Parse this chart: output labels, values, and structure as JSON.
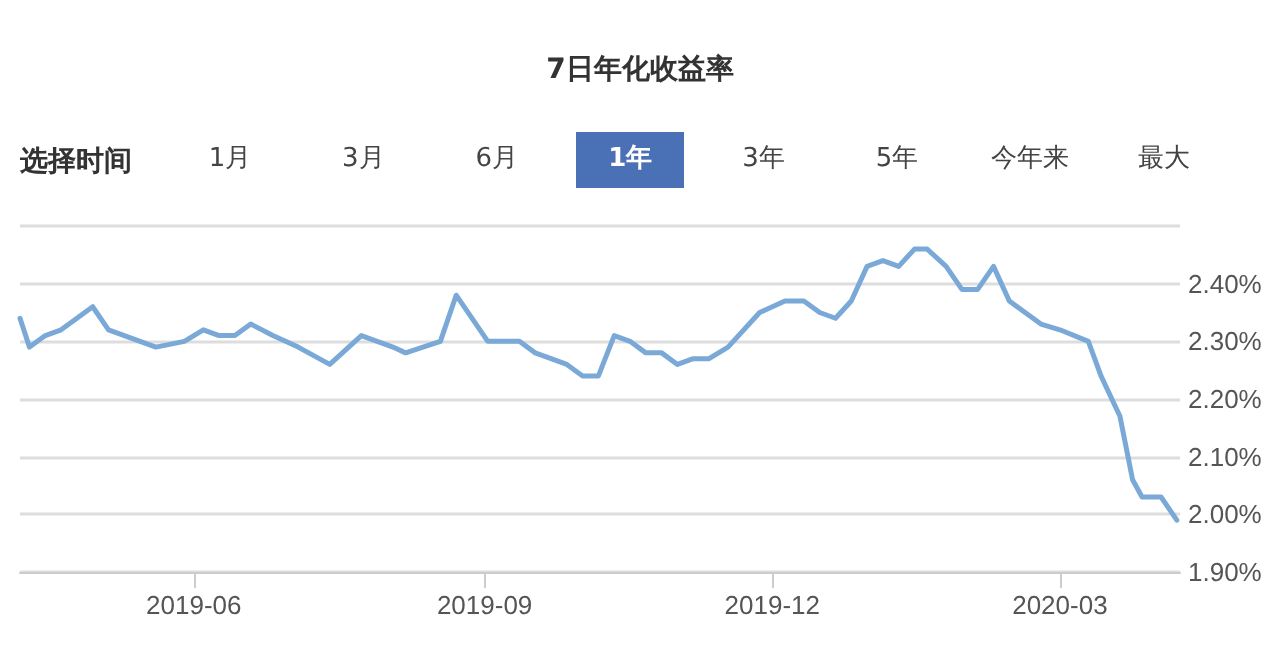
{
  "chart_data": {
    "type": "line",
    "title": "7日年化收益率",
    "annotations": [
      "选择时间",
      "1月",
      "3月",
      "6月",
      "1年",
      "3年",
      "5年",
      "今年来",
      "最大"
    ],
    "x": [
      "2019-04-07",
      "2019-04-10",
      "2019-04-15",
      "2019-04-20",
      "2019-04-30",
      "2019-05-05",
      "2019-05-10",
      "2019-05-20",
      "2019-05-29",
      "2019-06-04",
      "2019-06-09",
      "2019-06-14",
      "2019-06-19",
      "2019-06-26",
      "2019-07-04",
      "2019-07-14",
      "2019-07-24",
      "2019-07-29",
      "2019-08-03",
      "2019-08-07",
      "2019-08-18",
      "2019-08-23",
      "2019-09-02",
      "2019-09-07",
      "2019-09-12",
      "2019-09-17",
      "2019-09-27",
      "2019-10-02",
      "2019-10-06",
      "2019-10-07",
      "2019-10-12",
      "2019-10-17",
      "2019-10-22",
      "2019-10-27",
      "2019-11-01",
      "2019-11-06",
      "2019-11-11",
      "2019-11-17",
      "2019-11-27",
      "2019-12-05",
      "2019-12-11",
      "2019-12-16",
      "2019-12-21",
      "2019-12-26",
      "2019-12-31",
      "2020-01-05",
      "2020-01-10",
      "2020-01-15",
      "2020-01-19",
      "2020-01-25",
      "2020-01-30",
      "2020-02-04",
      "2020-02-09",
      "2020-02-14",
      "2020-02-19",
      "2020-02-24",
      "2020-03-01",
      "2020-03-10",
      "2020-03-14",
      "2020-03-20",
      "2020-03-24",
      "2020-03-27",
      "2020-04-02",
      "2020-04-07"
    ],
    "series": [
      {
        "color": "#7aa9d8",
        "values": [
          2.34,
          2.29,
          2.31,
          2.32,
          2.36,
          2.32,
          2.31,
          2.29,
          2.3,
          2.32,
          2.31,
          2.31,
          2.33,
          2.31,
          2.29,
          2.26,
          2.31,
          2.3,
          2.29,
          2.28,
          2.3,
          2.38,
          2.3,
          2.3,
          2.3,
          2.28,
          2.26,
          2.24,
          2.24,
          2.24,
          2.31,
          2.3,
          2.28,
          2.28,
          2.26,
          2.27,
          2.27,
          2.29,
          2.35,
          2.37,
          2.37,
          2.35,
          2.34,
          2.37,
          2.43,
          2.44,
          2.43,
          2.46,
          2.46,
          2.43,
          2.39,
          2.39,
          2.43,
          2.37,
          2.35,
          2.33,
          2.32,
          2.3,
          2.24,
          2.17,
          2.06,
          2.03,
          2.03,
          1.99
        ]
      }
    ],
    "xlim": [
      "2019-04-07",
      "2020-04-08"
    ],
    "xticks": [
      "2019-06",
      "2019-09",
      "2019-12",
      "2020-03"
    ],
    "ylim": [
      1.9,
      2.5
    ],
    "yticks": [
      {
        "value": 1.9,
        "label": "1.90%"
      },
      {
        "value": 2.0,
        "label": "2.00%"
      },
      {
        "value": 2.1,
        "label": "2.10%"
      },
      {
        "value": 2.2,
        "label": "2.20%"
      },
      {
        "value": 2.3,
        "label": "2.30%"
      },
      {
        "value": 2.4,
        "label": "2.40%"
      },
      {
        "value": 2.5,
        "label": null
      }
    ],
    "grid": "y",
    "marker": "none",
    "line_style": "solid"
  }
}
